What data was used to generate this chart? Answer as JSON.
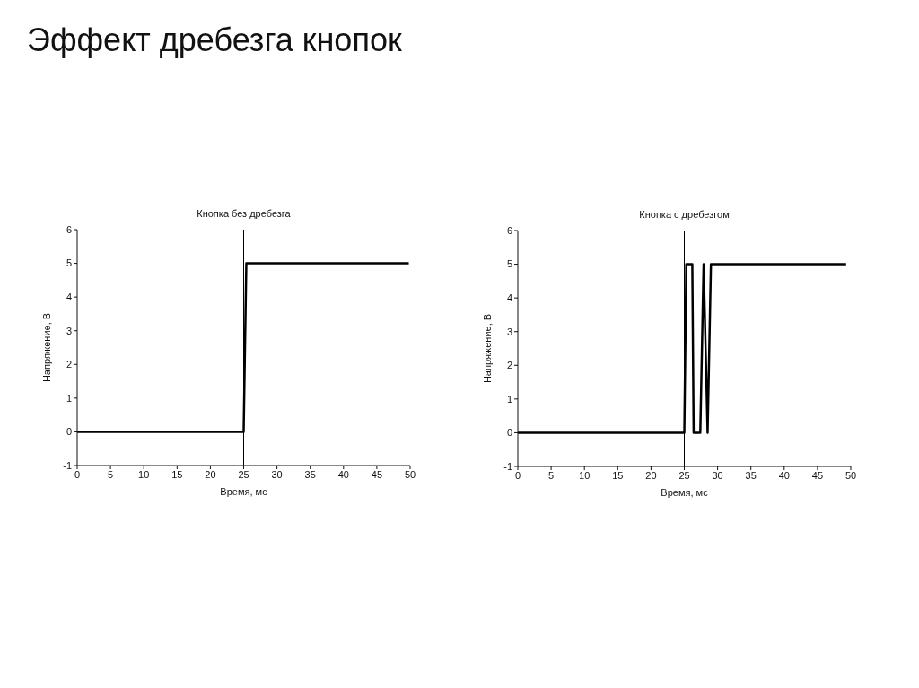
{
  "chart_data": [
    {
      "type": "line",
      "title": "Кнопка без дребезга",
      "xlabel": "Время, мс",
      "ylabel": "Напряжение, В",
      "annotations": [
        "Эффект дребезга кнопок"
      ],
      "x": [
        0,
        25,
        25.4,
        49.8
      ],
      "values": [
        0,
        0,
        5,
        5
      ],
      "color": "#000000",
      "line_style": "solid",
      "xlim": [
        0,
        50
      ],
      "xticks": [
        0,
        5,
        10,
        15,
        20,
        25,
        30,
        35,
        40,
        45,
        50
      ],
      "ylim": [
        -1,
        6
      ],
      "yticks": [
        -1,
        0,
        1,
        2,
        3,
        4,
        5,
        6
      ],
      "ref_lines": [
        {
          "axis": "x",
          "value": 25,
          "color": "#000000"
        }
      ]
    },
    {
      "type": "line",
      "title": "Кнопка с дребезгом",
      "xlabel": "Время, мс",
      "ylabel": "Напряжение, В",
      "x": [
        0,
        25,
        25.3,
        26.2,
        26.4,
        27.4,
        27.9,
        28.5,
        29.0,
        49.3
      ],
      "values": [
        0,
        0,
        5,
        5,
        0,
        0,
        5,
        0,
        5,
        5
      ],
      "color": "#000000",
      "line_style": "solid",
      "xlim": [
        0,
        50
      ],
      "xticks": [
        0,
        5,
        10,
        15,
        20,
        25,
        30,
        35,
        40,
        45,
        50
      ],
      "ylim": [
        -1,
        6
      ],
      "yticks": [
        -1,
        0,
        1,
        2,
        3,
        4,
        5,
        6
      ],
      "ref_lines": [
        {
          "axis": "x",
          "value": 25,
          "color": "#000000"
        }
      ]
    }
  ]
}
